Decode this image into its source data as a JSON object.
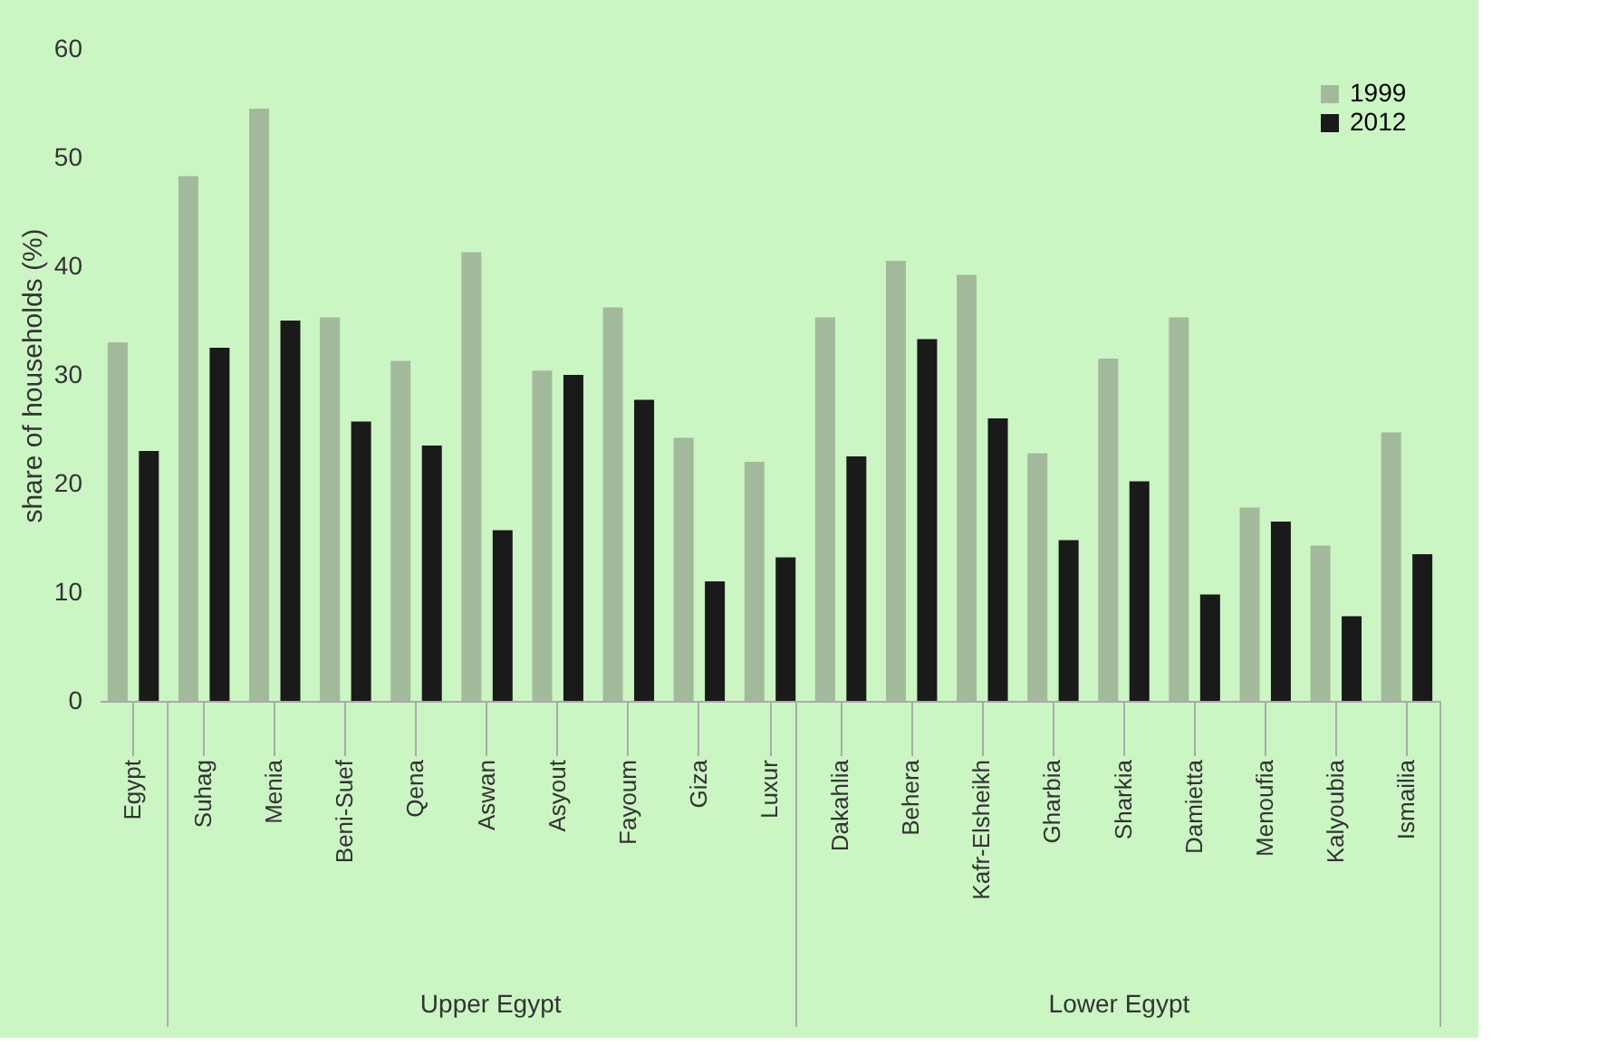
{
  "chart_data": {
    "type": "bar",
    "ylabel": "share of households (%)",
    "categories": [
      "Egypt",
      "Suhag",
      "Menia",
      "Beni-Suef",
      "Qena",
      "Aswan",
      "Asyout",
      "Fayoum",
      "Giza",
      "Luxur",
      "Dakahlia",
      "Behera",
      "Kafr-Elsheikh",
      "Gharbia",
      "Sharkia",
      "Damietta",
      "Menoufia",
      "Kalyoubia",
      "Ismailia"
    ],
    "series": [
      {
        "name": "1999",
        "color": "#a3b99c",
        "values": [
          33,
          48.3,
          54.5,
          35.3,
          31.3,
          41.3,
          30.4,
          36.2,
          24.2,
          22,
          35.3,
          40.5,
          39.2,
          22.8,
          31.5,
          35.3,
          17.8,
          14.3,
          24.7
        ]
      },
      {
        "name": "2012",
        "color": "#1a1a1a",
        "values": [
          23,
          32.5,
          35,
          25.7,
          23.5,
          15.7,
          30,
          27.7,
          11,
          13.2,
          22.5,
          33.3,
          26,
          14.8,
          20.2,
          9.8,
          16.5,
          7.8,
          13.5
        ]
      }
    ],
    "ylim": [
      0,
      60
    ],
    "yticks": [
      0,
      10,
      20,
      30,
      40,
      50,
      60
    ],
    "grid": false,
    "legend": "top right",
    "annotations": [
      "Upper Egypt",
      "Lower Egypt"
    ]
  }
}
